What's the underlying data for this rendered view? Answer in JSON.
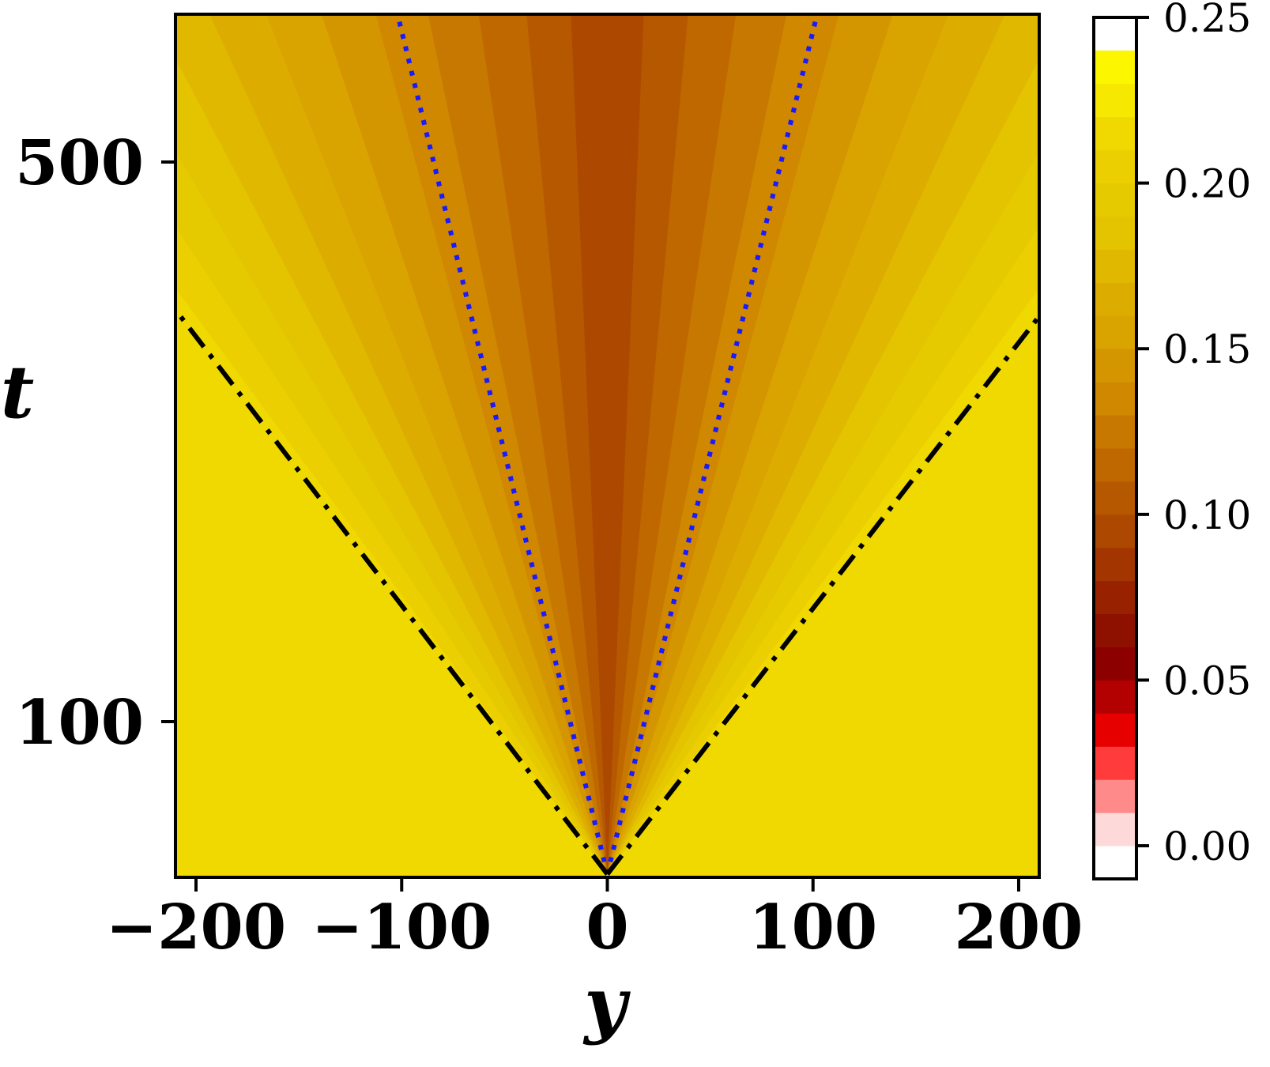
{
  "chart_data": {
    "type": "heatmap",
    "title": "",
    "xlabel": "y",
    "ylabel": "t",
    "xlim": [
      -210,
      210
    ],
    "x_ticks": [
      -200,
      -100,
      0,
      100,
      200
    ],
    "x_tick_labels": [
      "−200",
      "−100",
      "0",
      "100",
      "200"
    ],
    "y_ticks": [
      100,
      500
    ],
    "y_tick_labels": [
      "100",
      "500"
    ],
    "colorbar": {
      "range": [
        -0.01,
        0.25
      ],
      "ticks": [
        0.0,
        0.05,
        0.1,
        0.15,
        0.2,
        0.25
      ],
      "tick_labels": [
        "0.00",
        "0.05",
        "0.10",
        "0.15",
        "0.20",
        "0.25"
      ],
      "levels": [
        -0.01,
        0.0,
        0.01,
        0.02,
        0.03,
        0.04,
        0.05,
        0.06,
        0.07,
        0.08,
        0.09,
        0.1,
        0.11,
        0.12,
        0.13,
        0.14,
        0.15,
        0.16,
        0.17,
        0.18,
        0.19,
        0.2,
        0.21,
        0.22,
        0.23,
        0.24,
        0.25
      ],
      "colors": [
        "#ffffff",
        "#fdd9d9",
        "#ff8a8a",
        "#ff3b3b",
        "#e60000",
        "#b30000",
        "#8c0000",
        "#8e1100",
        "#982200",
        "#a23500",
        "#ac4800",
        "#b65800",
        "#bf6800",
        "#c77800",
        "#cf8800",
        "#d49600",
        "#d9a300",
        "#dcac00",
        "#e0b800",
        "#e4c300",
        "#e6ca00",
        "#eccf00",
        "#f0d900",
        "#f6e800",
        "#fcf600"
      ]
    },
    "fan_bands": {
      "values": [
        0.09,
        0.1,
        0.11,
        0.12,
        0.13,
        0.14,
        0.15,
        0.16,
        0.17,
        0.18,
        0.19,
        0.2,
        0.21
      ],
      "outer_value": 0.21,
      "inner_value": 0.09
    },
    "lines": [
      {
        "style": "dotted",
        "color": "#1a1aff",
        "slopes": [
          -0.2,
          0.2
        ]
      },
      {
        "style": "dash-dot",
        "color": "#000000",
        "slopes": [
          -0.745,
          0.745
        ]
      }
    ]
  }
}
